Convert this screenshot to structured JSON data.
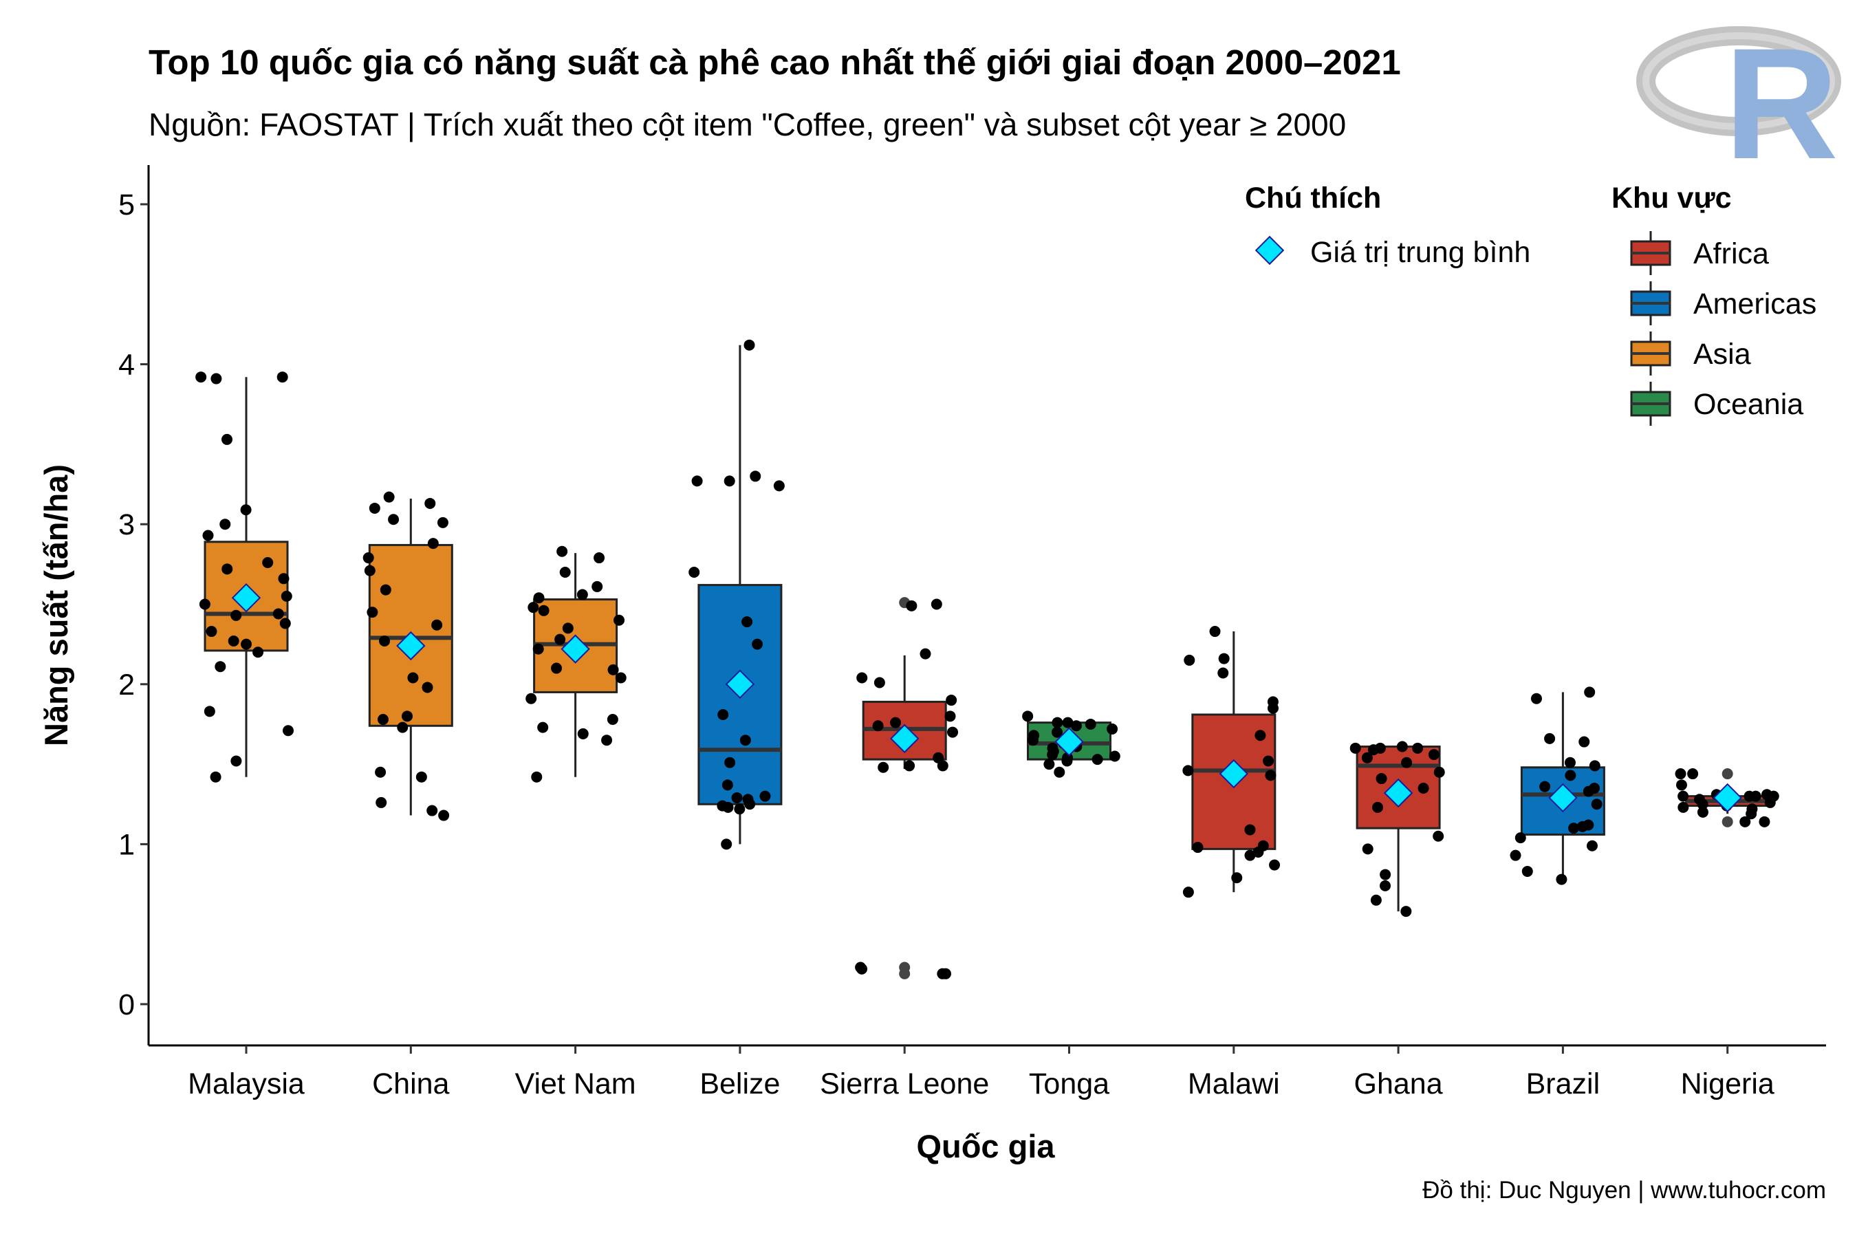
{
  "colors": {
    "Africa": "#c0392b",
    "Americas": "#0a72ba",
    "Asia": "#e08623",
    "Oceania": "#2a8a4a",
    "mean_marker": "#00e5ff",
    "point": "#000000"
  },
  "logo": {
    "letter": "R"
  },
  "chart_data": {
    "type": "box",
    "title": "Top 10 quốc gia có năng suất cà phê cao nhất thế giới giai đoạn 2000–2021",
    "subtitle": "Nguồn: FAOSTAT | Trích xuất theo cột item \"Coffee, green\" và subset cột year ≥ 2000",
    "xlabel": "Quốc gia",
    "ylabel": "Năng suất (tấn/ha)",
    "caption": "Đồ thị: Duc Nguyen | www.tuhocr.com",
    "ylim": [
      -0.25,
      5.25
    ],
    "yticks": [
      0,
      1,
      2,
      3,
      4,
      5
    ],
    "grid": false,
    "legend_position": "top-right",
    "legend": {
      "mean_title": "Chú thích",
      "mean_label": "Giá trị trung bình",
      "region_title": "Khu vực",
      "regions": [
        "Africa",
        "Americas",
        "Asia",
        "Oceania"
      ]
    },
    "series": [
      {
        "country": "Malaysia",
        "region": "Asia",
        "q1": 2.21,
        "median": 2.44,
        "q3": 2.89,
        "whisker_low": 1.42,
        "whisker_high": 3.92,
        "mean": 2.54,
        "outliers": [],
        "points": [
          2.66,
          2.55,
          2.5,
          2.43,
          2.38,
          2.33,
          2.27,
          2.25,
          2.2,
          2.11,
          1.83,
          1.71,
          1.52,
          1.42,
          3.09,
          3.0,
          2.93,
          2.76,
          2.72,
          3.53,
          3.92,
          3.92,
          3.91,
          2.44
        ]
      },
      {
        "country": "China",
        "region": "Asia",
        "q1": 1.74,
        "median": 2.29,
        "q3": 2.87,
        "whisker_low": 1.18,
        "whisker_high": 3.16,
        "mean": 2.24,
        "outliers": [],
        "points": [
          3.1,
          3.01,
          2.88,
          2.79,
          2.59,
          2.45,
          2.37,
          2.27,
          2.04,
          1.98,
          1.78,
          1.73,
          1.45,
          1.42,
          1.26,
          1.21,
          1.18,
          3.17,
          3.13,
          3.03,
          2.71,
          2.22,
          1.8
        ]
      },
      {
        "country": "Viet Nam",
        "region": "Asia",
        "q1": 1.95,
        "median": 2.25,
        "q3": 2.53,
        "whisker_low": 1.42,
        "whisker_high": 2.82,
        "mean": 2.22,
        "outliers": [],
        "points": [
          2.83,
          2.79,
          2.7,
          2.61,
          2.56,
          2.48,
          2.46,
          2.4,
          2.35,
          2.22,
          2.1,
          2.09,
          2.04,
          1.91,
          1.78,
          1.73,
          1.69,
          1.65,
          1.42,
          2.28,
          2.54
        ]
      },
      {
        "country": "Belize",
        "region": "Americas",
        "q1": 1.25,
        "median": 1.59,
        "q3": 2.62,
        "whisker_low": 1.0,
        "whisker_high": 4.12,
        "mean": 2.0,
        "outliers": [],
        "points": [
          4.12,
          3.3,
          3.27,
          3.27,
          3.24,
          2.7,
          2.39,
          2.25,
          1.81,
          1.65,
          1.51,
          1.37,
          1.3,
          1.29,
          1.28,
          1.25,
          1.24,
          1.23,
          1.22,
          1.0
        ]
      },
      {
        "country": "Sierra Leone",
        "region": "Africa",
        "q1": 1.53,
        "median": 1.72,
        "q3": 1.89,
        "whisker_low": 1.47,
        "whisker_high": 2.18,
        "mean": 1.66,
        "outliers": [
          0.23,
          0.19,
          2.51
        ],
        "points": [
          2.5,
          2.49,
          2.19,
          2.04,
          2.01,
          1.9,
          1.8,
          1.76,
          1.74,
          1.7,
          1.64,
          1.54,
          1.49,
          1.49,
          1.48,
          0.23,
          0.22,
          0.19,
          0.19
        ]
      },
      {
        "country": "Tonga",
        "region": "Oceania",
        "q1": 1.53,
        "median": 1.63,
        "q3": 1.76,
        "whisker_low": 1.53,
        "whisker_high": 1.76,
        "mean": 1.64,
        "outliers": [],
        "points": [
          1.8,
          1.76,
          1.76,
          1.75,
          1.74,
          1.72,
          1.7,
          1.68,
          1.65,
          1.63,
          1.61,
          1.6,
          1.58,
          1.56,
          1.55,
          1.54,
          1.53,
          1.52,
          1.5,
          1.45
        ]
      },
      {
        "country": "Malawi",
        "region": "Africa",
        "q1": 0.97,
        "median": 1.46,
        "q3": 1.81,
        "whisker_low": 0.7,
        "whisker_high": 2.33,
        "mean": 1.44,
        "outliers": [],
        "points": [
          2.33,
          2.16,
          2.15,
          2.07,
          1.89,
          1.85,
          1.68,
          1.52,
          1.46,
          1.43,
          1.09,
          0.99,
          0.98,
          0.95,
          0.93,
          0.87,
          0.79,
          0.7
        ]
      },
      {
        "country": "Ghana",
        "region": "Africa",
        "q1": 1.1,
        "median": 1.49,
        "q3": 1.61,
        "whisker_low": 0.58,
        "whisker_high": 1.61,
        "mean": 1.32,
        "outliers": [],
        "points": [
          1.61,
          1.6,
          1.6,
          1.6,
          1.59,
          1.56,
          1.54,
          1.51,
          1.45,
          1.41,
          1.35,
          1.23,
          1.05,
          0.97,
          0.81,
          0.74,
          0.65,
          0.58
        ]
      },
      {
        "country": "Brazil",
        "region": "Americas",
        "q1": 1.06,
        "median": 1.31,
        "q3": 1.48,
        "whisker_low": 0.78,
        "whisker_high": 1.95,
        "mean": 1.29,
        "outliers": [],
        "points": [
          1.95,
          1.91,
          1.66,
          1.64,
          1.51,
          1.49,
          1.43,
          1.36,
          1.35,
          1.33,
          1.25,
          1.12,
          1.11,
          1.1,
          1.04,
          0.99,
          0.93,
          0.83,
          0.78
        ]
      },
      {
        "country": "Nigeria",
        "region": "Africa",
        "q1": 1.24,
        "median": 1.27,
        "q3": 1.3,
        "whisker_low": 1.19,
        "whisker_high": 1.37,
        "mean": 1.29,
        "outliers": [
          1.44,
          1.14
        ],
        "points": [
          1.44,
          1.44,
          1.37,
          1.31,
          1.31,
          1.3,
          1.3,
          1.3,
          1.3,
          1.28,
          1.26,
          1.25,
          1.24,
          1.23,
          1.22,
          1.2,
          1.19,
          1.14,
          1.14
        ]
      }
    ]
  }
}
